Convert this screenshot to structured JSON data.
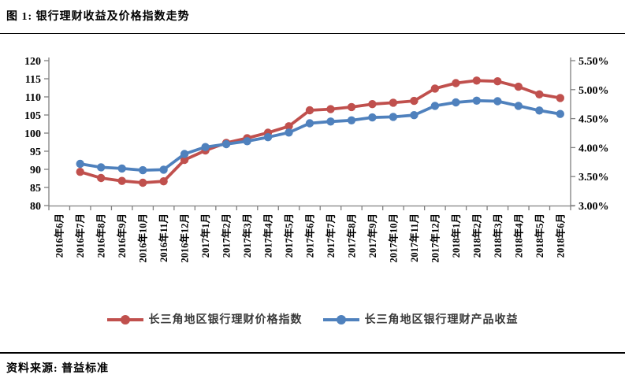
{
  "title": "图 1: 银行理财收益及价格指数走势",
  "source": "资料来源: 普益标准",
  "chart_data": {
    "type": "line",
    "title": "银行理财收益及价格指数走势",
    "categories": [
      "2016年6月",
      "2016年7月",
      "2016年8月",
      "2016年9月",
      "2016年10月",
      "2016年11月",
      "2016年12月",
      "2017年1月",
      "2017年2月",
      "2017年3月",
      "2017年4月",
      "2017年5月",
      "2017年6月",
      "2017年7月",
      "2017年8月",
      "2017年9月",
      "2017年10月",
      "2017年11月",
      "2017年12月",
      "2018年1月",
      "2018年2月",
      "2018年3月",
      "2018年4月",
      "2018年5月",
      "2018年6月"
    ],
    "series": [
      {
        "name": "长三角地区银行理财价格指数",
        "axis": "left",
        "color": "#C0504D",
        "values": [
          null,
          89.3,
          87.6,
          86.8,
          86.3,
          86.7,
          92.6,
          95.2,
          97.3,
          98.6,
          100.1,
          101.9,
          106.3,
          106.6,
          107.2,
          108.0,
          108.4,
          108.9,
          112.3,
          113.8,
          114.5,
          114.3,
          112.8,
          110.7,
          109.7
        ]
      },
      {
        "name": "长三角地区银行理财产品收益",
        "axis": "right",
        "color": "#4F81BD",
        "values": [
          null,
          3.72,
          3.66,
          3.64,
          3.61,
          3.62,
          3.89,
          4.01,
          4.06,
          4.11,
          4.18,
          4.26,
          4.42,
          4.45,
          4.47,
          4.52,
          4.53,
          4.56,
          4.72,
          4.78,
          4.81,
          4.8,
          4.72,
          4.64,
          4.58
        ]
      }
    ],
    "left_axis": {
      "min": 80,
      "max": 120,
      "step": 5,
      "tick_labels": [
        "80",
        "85",
        "90",
        "95",
        "100",
        "105",
        "110",
        "115",
        "120"
      ]
    },
    "right_axis": {
      "min": 3.0,
      "max": 5.5,
      "step": 0.5,
      "tick_labels": [
        "3.00%",
        "3.50%",
        "4.00%",
        "4.50%",
        "5.00%",
        "5.50%"
      ]
    },
    "grid": false,
    "legend_position": "bottom"
  }
}
